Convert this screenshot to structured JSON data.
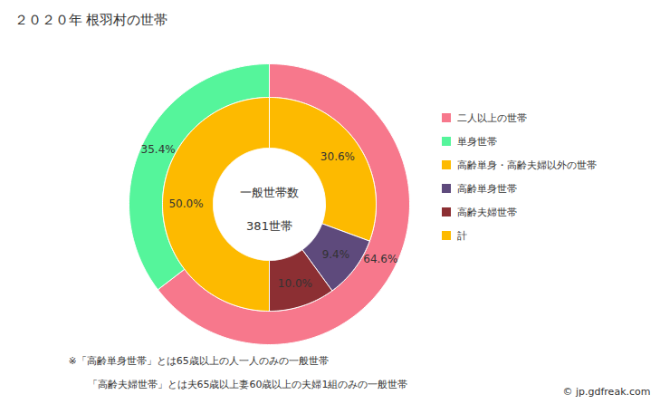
{
  "chart_data": {
    "type": "donut",
    "title": "２０２０年 根羽村の世帯",
    "center_text": [
      "一般世帯数",
      "381世帯"
    ],
    "data_labels": true,
    "legend": "right",
    "rings": [
      {
        "categories": [
          "二人以上の世帯",
          "単身世帯"
        ],
        "values": [
          64.6,
          35.4
        ],
        "value_labels": [
          "64.6%",
          "35.4%"
        ],
        "colors": [
          "#f7788c",
          "#55f59b"
        ]
      },
      {
        "categories": [
          "高齢単身・高齢夫婦以外の世帯",
          "高齢単身世帯",
          "高齢夫婦世帯",
          "計"
        ],
        "values": [
          30.6,
          9.4,
          10.0,
          50.0
        ],
        "value_labels": [
          "30.6%",
          "9.4%",
          "10.0%",
          "50.0%"
        ],
        "colors": [
          "#fdba00",
          "#5e4a7c",
          "#8c2f33",
          "#fdba00"
        ]
      }
    ],
    "notes": [
      "※「高齢単身世帯」とは65歳以上の人一人のみの一般世帯",
      "「高齢夫婦世帯」とは夫65歳以上妻60歳以上の夫婦1組のみの一般世帯"
    ],
    "source": "© jp.gdfreak.com"
  }
}
